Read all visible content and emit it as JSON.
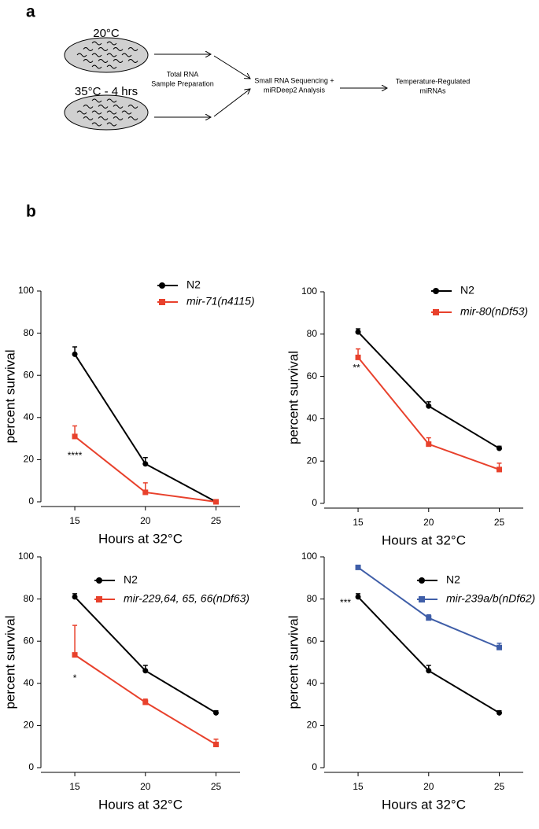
{
  "panel_a": {
    "label": "a",
    "dish_top": "20°C",
    "dish_bottom": "35°C - 4 hrs",
    "step1": [
      "Total RNA",
      "Sample Preparation"
    ],
    "step2": [
      "Small RNA Sequencing +",
      "miRDeep2 Analysis"
    ],
    "step3": [
      "Temperature-Regulated",
      "miRNAs"
    ]
  },
  "panel_b": {
    "label": "b"
  },
  "chart_data": [
    {
      "type": "line",
      "ylabel": "percent survival",
      "xlabel": "Hours at 32°C",
      "annotation": "****",
      "x": [
        15,
        20,
        25
      ],
      "xlim": [
        12.6,
        26.7
      ],
      "xticks": [
        15,
        20,
        25
      ],
      "ylim": [
        0,
        100
      ],
      "yticks": [
        0,
        20,
        40,
        60,
        80,
        100
      ],
      "series": [
        {
          "name": "N2",
          "color": "#000000",
          "marker": "circle",
          "values": [
            70,
            18,
            0
          ],
          "errors": [
            3.5,
            3,
            0.5
          ]
        },
        {
          "name": "mir-71(n4115)",
          "color": "#e8412c",
          "marker": "square",
          "values": [
            31,
            4.5,
            0
          ],
          "errors": [
            5,
            4.5,
            0.5
          ]
        }
      ]
    },
    {
      "type": "line",
      "ylabel": "percent survival",
      "xlabel": "Hours at 32°C",
      "annotation": "**",
      "x": [
        15,
        20,
        25
      ],
      "xlim": [
        12.6,
        26.7
      ],
      "xticks": [
        15,
        20,
        25
      ],
      "ylim": [
        0,
        100
      ],
      "yticks": [
        0,
        20,
        40,
        60,
        80,
        100
      ],
      "series": [
        {
          "name": "N2",
          "color": "#000000",
          "marker": "circle",
          "values": [
            81,
            46,
            26
          ],
          "errors": [
            1.5,
            2,
            1
          ]
        },
        {
          "name": "mir-80(nDf53)",
          "color": "#e8412c",
          "marker": "square",
          "values": [
            69,
            28,
            16
          ],
          "errors": [
            4,
            3,
            3
          ]
        }
      ]
    },
    {
      "type": "line",
      "ylabel": "percent survival",
      "xlabel": "Hours at 32°C",
      "annotation": "*",
      "x": [
        15,
        20,
        25
      ],
      "xlim": [
        12.6,
        26.7
      ],
      "xticks": [
        15,
        20,
        25
      ],
      "ylim": [
        0,
        100
      ],
      "yticks": [
        0,
        20,
        40,
        60,
        80,
        100
      ],
      "series": [
        {
          "name": "N2",
          "color": "#000000",
          "marker": "circle",
          "values": [
            81,
            46,
            26
          ],
          "errors": [
            1.5,
            2.5,
            1
          ]
        },
        {
          "name": "mir-229,64, 65, 66(nDf63)",
          "color": "#e8412c",
          "marker": "square",
          "values": [
            53.5,
            31,
            11
          ],
          "errors": [
            14,
            1.5,
            2.5
          ]
        }
      ]
    },
    {
      "type": "line",
      "ylabel": "percent survival",
      "xlabel": "Hours at 32°C",
      "annotation": "***",
      "x": [
        15,
        20,
        25
      ],
      "xlim": [
        12.6,
        26.7
      ],
      "xticks": [
        15,
        20,
        25
      ],
      "ylim": [
        0,
        100
      ],
      "yticks": [
        0,
        20,
        40,
        60,
        80,
        100
      ],
      "series": [
        {
          "name": "N2",
          "color": "#000000",
          "marker": "circle",
          "values": [
            81,
            46,
            26
          ],
          "errors": [
            1.5,
            2.5,
            1
          ]
        },
        {
          "name": "mir-239a/b(nDf62)",
          "color": "#3f5ea8",
          "marker": "square",
          "values": [
            95,
            71,
            57
          ],
          "errors": [
            1,
            1.5,
            2
          ]
        }
      ]
    }
  ]
}
